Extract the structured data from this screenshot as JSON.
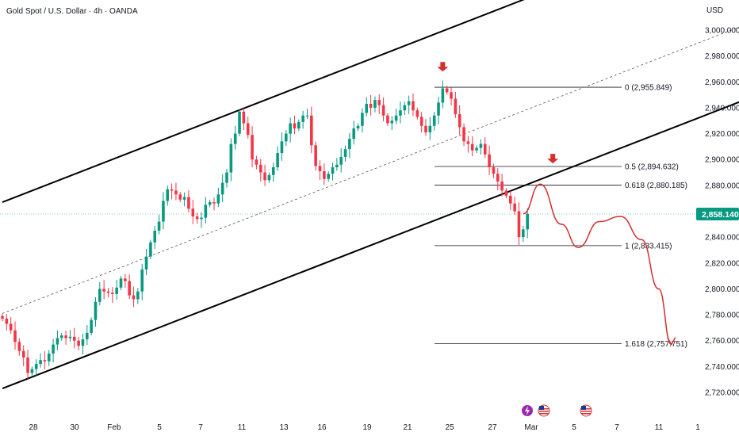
{
  "title": "Gold Spot / U.S. Dollar · 4h · OANDA",
  "currency": "USD",
  "last_price": "2,858.140",
  "colors": {
    "up": "#089981",
    "down": "#f23645",
    "annotation": "#d32f2f",
    "channel": "#000000",
    "axis_text": "#131722",
    "price_tag": "#089981"
  },
  "chart_data": {
    "type": "candlestick",
    "instrument": "XAUUSD",
    "timeframe": "4h",
    "y_ticks": [
      "3,000.000",
      "2,980.000",
      "2,960.000",
      "2,940.000",
      "2,920.000",
      "2,900.000",
      "2,880.000",
      "2,860.000",
      "2,840.000",
      "2,820.000",
      "2,800.000",
      "2,780.000",
      "2,760.000",
      "2,740.000",
      "2,720.000"
    ],
    "ylim": [
      2710,
      3010
    ],
    "x_ticks": [
      "28",
      "30",
      "Feb",
      "5",
      "7",
      "11",
      "13",
      "16",
      "19",
      "21",
      "25",
      "27",
      "Mar",
      "5",
      "7",
      "11",
      "1"
    ],
    "closes": [
      2777,
      2773,
      2768,
      2759,
      2752,
      2747,
      2735,
      2738,
      2742,
      2745,
      2744,
      2750,
      2757,
      2762,
      2764,
      2762,
      2763,
      2760,
      2756,
      2761,
      2766,
      2776,
      2790,
      2800,
      2798,
      2797,
      2796,
      2801,
      2808,
      2806,
      2795,
      2792,
      2798,
      2815,
      2825,
      2836,
      2845,
      2852,
      2868,
      2877,
      2876,
      2873,
      2869,
      2871,
      2862,
      2856,
      2854,
      2855,
      2865,
      2867,
      2866,
      2873,
      2882,
      2890,
      2912,
      2920,
      2937,
      2928,
      2919,
      2900,
      2896,
      2890,
      2884,
      2888,
      2894,
      2905,
      2914,
      2920,
      2928,
      2924,
      2929,
      2934,
      2934,
      2911,
      2895,
      2891,
      2885,
      2889,
      2894,
      2896,
      2902,
      2908,
      2916,
      2924,
      2926,
      2936,
      2943,
      2940,
      2946,
      2942,
      2934,
      2928,
      2930,
      2934,
      2938,
      2942,
      2945,
      2938,
      2933,
      2926,
      2921,
      2926,
      2934,
      2944,
      2955,
      2952,
      2947,
      2935,
      2925,
      2914,
      2912,
      2907,
      2909,
      2912,
      2904,
      2894,
      2889,
      2883,
      2876,
      2872,
      2866,
      2860,
      2840,
      2846,
      2858
    ],
    "fibonacci": [
      {
        "label": "0 (2,955.849)",
        "value": 2955.849
      },
      {
        "label": "0.5 (2,894.632)",
        "value": 2894.632
      },
      {
        "label": "0.618 (2,880.185)",
        "value": 2880.185
      },
      {
        "label": "1 (2,833.415)",
        "value": 2833.415
      },
      {
        "label": "1.618 (2,757.751)",
        "value": 2757.751
      }
    ],
    "channel": {
      "upper": [
        {
          "x": 0,
          "y": 2867
        },
        {
          "x": 180,
          "y": 3096
        }
      ],
      "lower": [
        {
          "x": 0,
          "y": 2723
        },
        {
          "x": 180,
          "y": 2952
        }
      ],
      "mid": [
        {
          "x": 0,
          "y": 2781
        },
        {
          "x": 180,
          "y": 3010
        }
      ]
    },
    "projection_path": [
      {
        "x": 123,
        "y": 2858
      },
      {
        "x": 127,
        "y": 2881
      },
      {
        "x": 132,
        "y": 2850
      },
      {
        "x": 136,
        "y": 2832
      },
      {
        "x": 141,
        "y": 2852
      },
      {
        "x": 146,
        "y": 2856
      },
      {
        "x": 151,
        "y": 2838
      },
      {
        "x": 155,
        "y": 2800
      },
      {
        "x": 158,
        "y": 2757
      }
    ],
    "arrows": [
      {
        "x": 104,
        "y": 2968
      },
      {
        "x": 130,
        "y": 2897
      }
    ]
  }
}
